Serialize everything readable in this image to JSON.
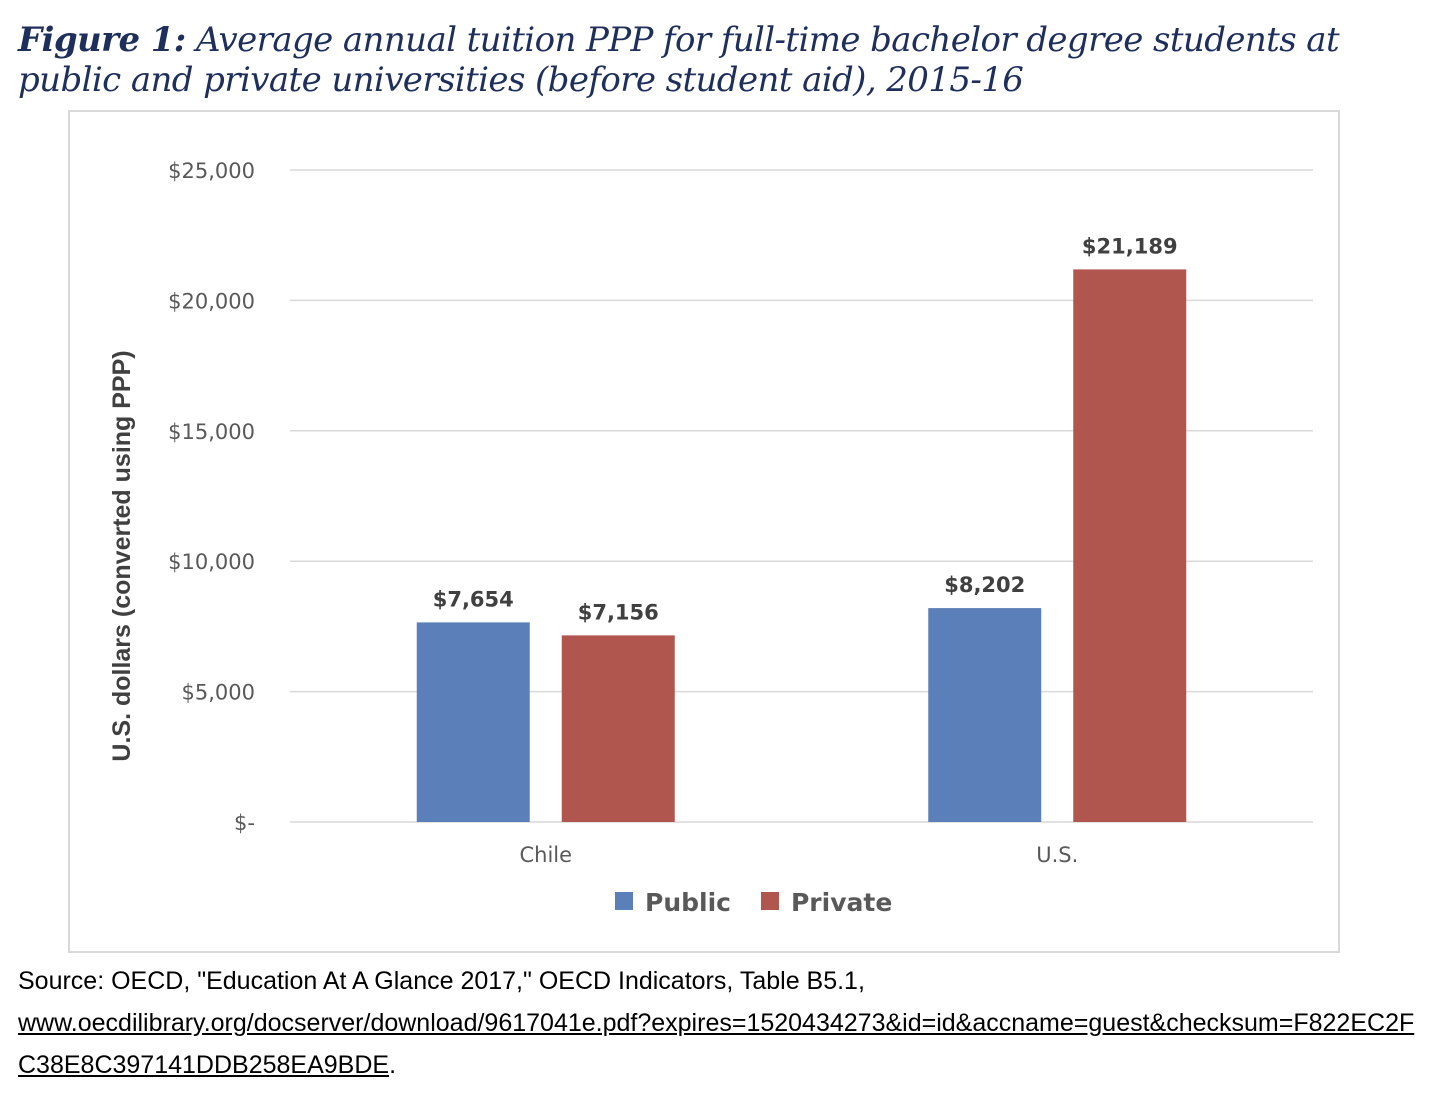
{
  "figure": {
    "label": "Figure 1:",
    "title": "Average annual tuition PPP for full-time bachelor degree students at public and private universities (before student aid), 2015-16"
  },
  "source": {
    "text": "Source: OECD, \"Education At A Glance 2017,\" OECD Indicators, Table B5.1,",
    "url": "www.oecdilibrary.org/docserver/download/9617041e.pdf?expires=1520434273&id=id&accname=guest&checksum=F822EC2FC38E8C397141DDB258EA9BDE",
    "url_suffix": "."
  },
  "chart_data": {
    "type": "bar",
    "categories": [
      "Chile",
      "U.S."
    ],
    "series": [
      {
        "name": "Public",
        "values": [
          7654,
          8202
        ],
        "labels": [
          "$7,654",
          "$8,202"
        ],
        "color": "#5b80b9"
      },
      {
        "name": "Private",
        "values": [
          7156,
          21189
        ],
        "labels": [
          "$7,156",
          "$21,189"
        ],
        "color": "#b1554f"
      }
    ],
    "ylabel": "U.S. dollars (converted using PPP)",
    "ylim": [
      0,
      25000
    ],
    "yticks": [
      0,
      5000,
      10000,
      15000,
      20000,
      25000
    ],
    "ytick_labels": [
      "$-",
      "$5,000",
      "$10,000",
      "$15,000",
      "$20,000",
      "$25,000"
    ],
    "grid": true,
    "legend": "bottom-center"
  }
}
